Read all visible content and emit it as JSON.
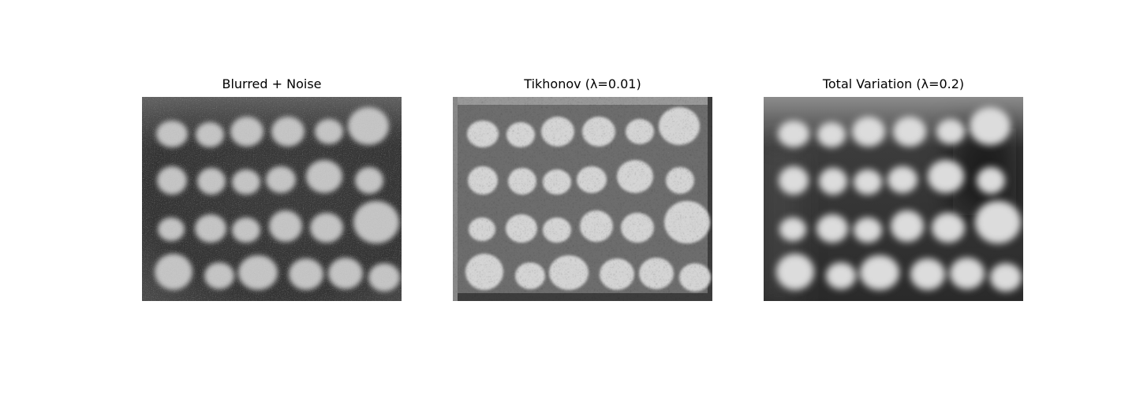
{
  "figure": {
    "panels": [
      {
        "title": "Blurred + Noise"
      },
      {
        "title": "Tikhonov (λ=0.01)"
      },
      {
        "title": "Total Variation (λ=0.2)"
      }
    ]
  }
}
